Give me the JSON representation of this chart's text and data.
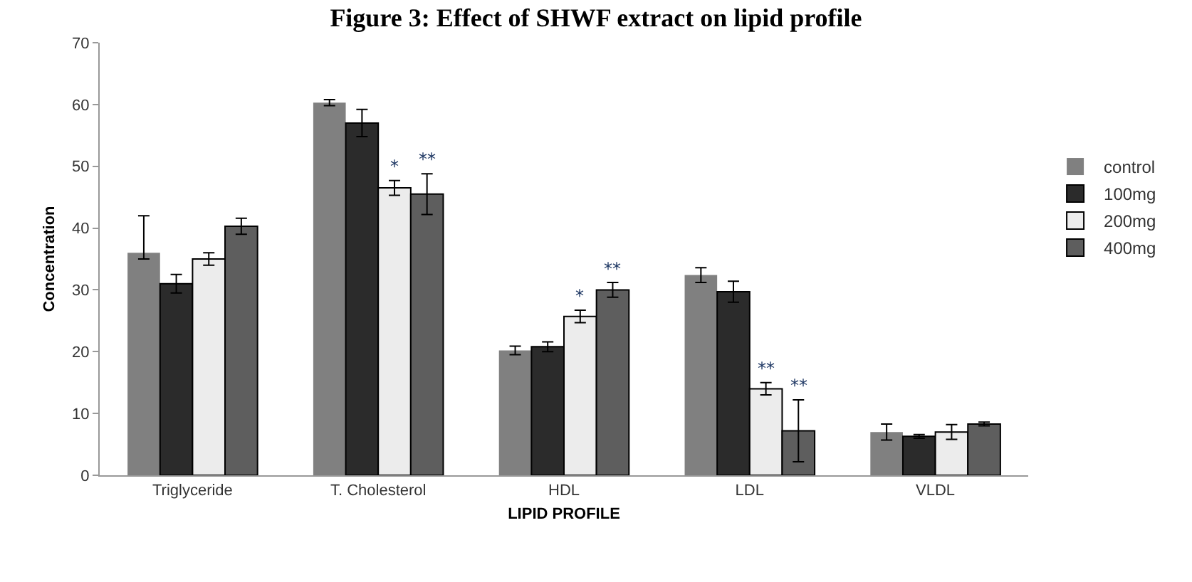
{
  "chart_data": {
    "type": "bar",
    "title": "Figure 3: Effect of SHWF extract on lipid profile",
    "xlabel": "LIPID PROFILE",
    "ylabel": "Concentration",
    "categories": [
      "Triglyceride",
      "T. Cholesterol",
      "HDL",
      "LDL",
      "VLDL"
    ],
    "series": [
      {
        "name": "control",
        "color": "#808080",
        "values": [
          36,
          60.3,
          20.2,
          32.4,
          7
        ],
        "errors": [
          [
            35,
            42
          ],
          0.5,
          0.7,
          1.2,
          1.3
        ],
        "value_labels": [
          null,
          null,
          null,
          null,
          null
        ]
      },
      {
        "name": "100mg",
        "color": "#2b2b2b",
        "values": [
          31,
          57,
          20.8,
          29.7,
          6.3
        ],
        "errors": [
          1.5,
          2.2,
          0.8,
          1.7,
          0.3
        ],
        "value_labels": [
          null,
          null,
          null,
          null,
          null
        ]
      },
      {
        "name": "200mg",
        "color": "#ececec",
        "values": [
          35,
          46.5,
          25.7,
          14,
          7
        ],
        "errors": [
          1,
          1.2,
          1,
          1,
          1.2
        ],
        "value_labels": [
          null,
          "*",
          "*",
          "**",
          null
        ]
      },
      {
        "name": "400mg",
        "color": "#5e5e5e",
        "values": [
          40.3,
          45.5,
          30,
          7.2,
          8.3
        ],
        "errors": [
          1.3,
          3.3,
          1.2,
          5,
          0.3
        ],
        "value_labels": [
          null,
          "**",
          "**",
          "**",
          null
        ]
      }
    ],
    "ylim": [
      0,
      70
    ],
    "yticks": [
      0,
      10,
      20,
      30,
      40,
      50,
      60,
      70
    ],
    "grid": false,
    "legend": "right"
  }
}
